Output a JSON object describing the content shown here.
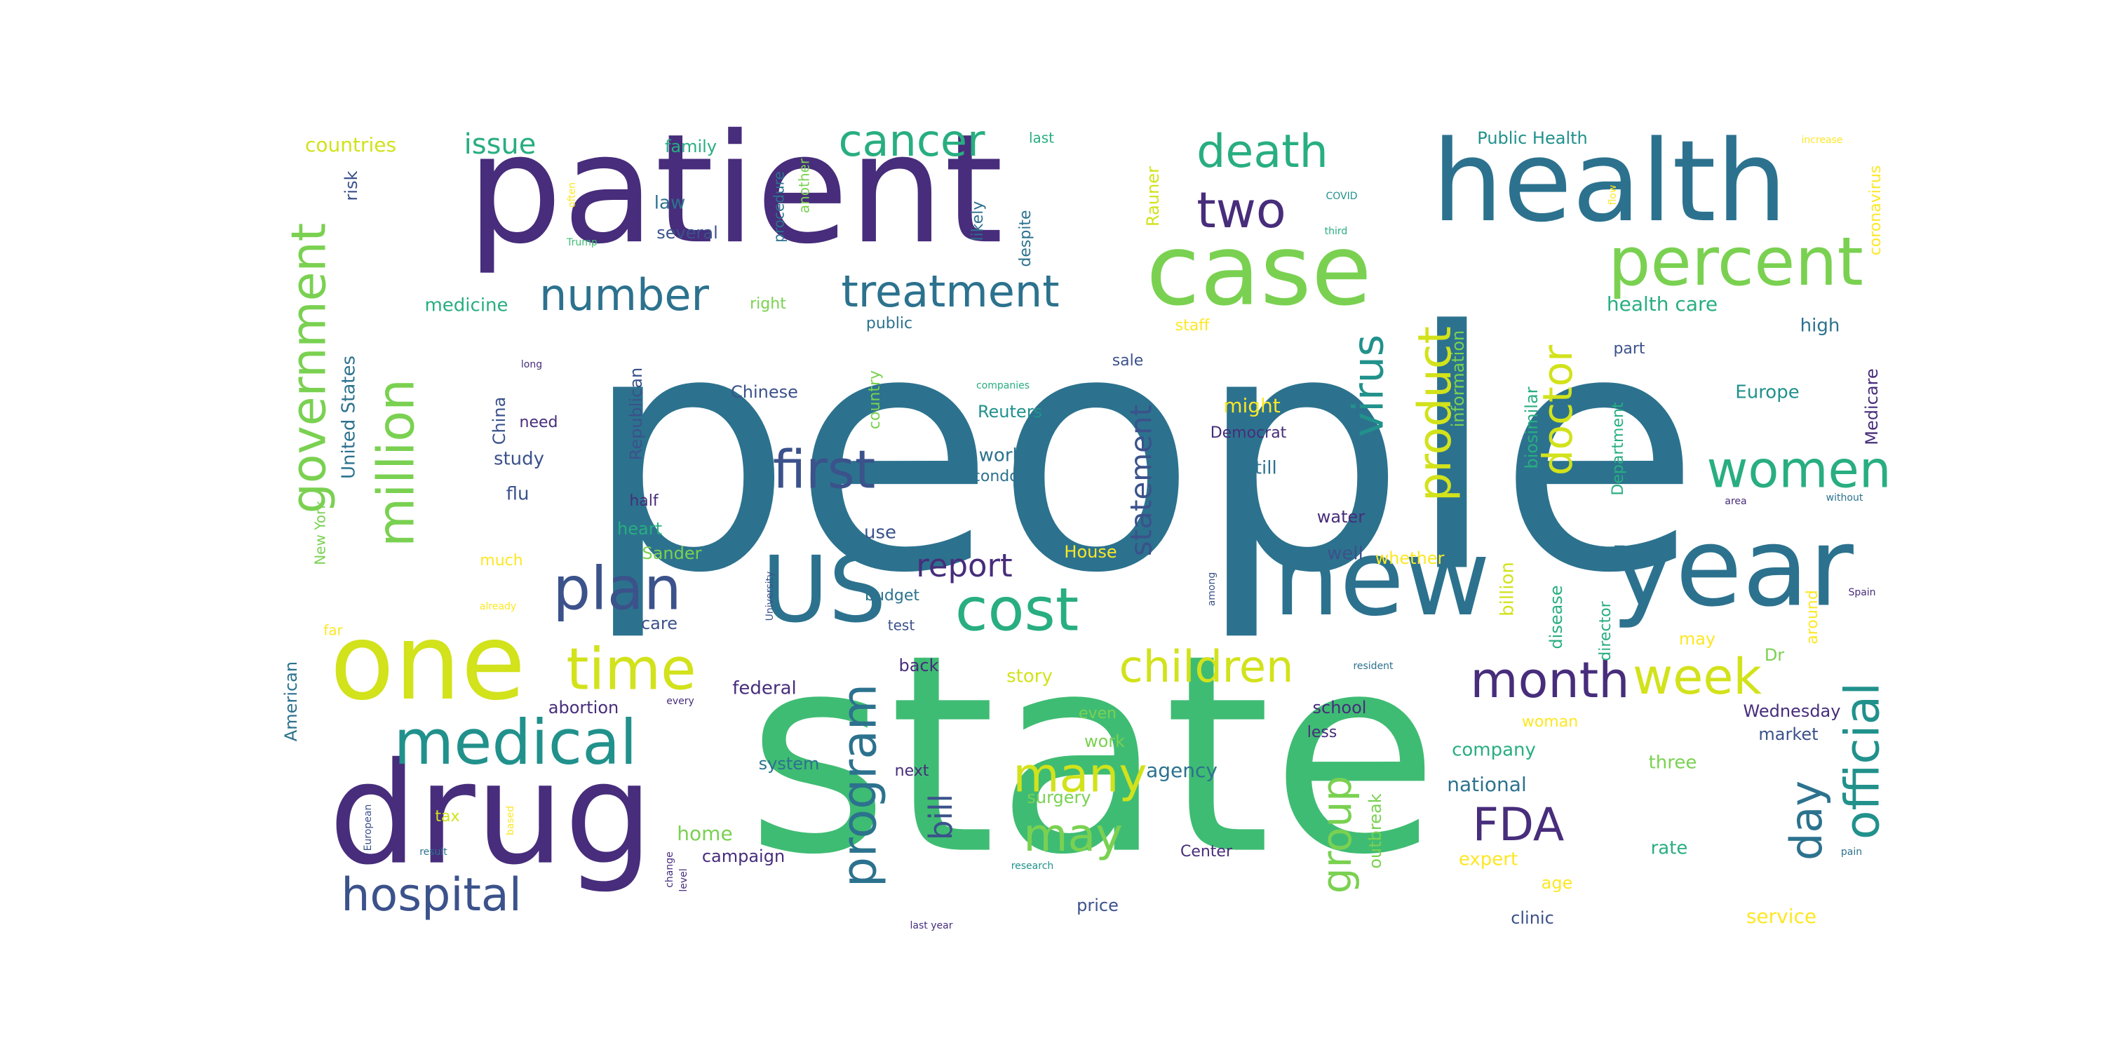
{
  "palette": {
    "indigo": "#472d7b",
    "blue": "#3b528b",
    "teal": "#2c728e",
    "cyan": "#21918c",
    "green": "#28ae80",
    "emerald": "#3fbc73",
    "lime": "#7ad151",
    "yellow": "#d2e21b",
    "gold": "#fde725"
  },
  "words": [
    {
      "text": "people",
      "color": "teal"
    },
    {
      "text": "state",
      "color": "emerald"
    },
    {
      "text": "patient",
      "color": "indigo"
    },
    {
      "text": "health",
      "color": "teal"
    },
    {
      "text": "case",
      "color": "lime"
    },
    {
      "text": "drug",
      "color": "indigo"
    },
    {
      "text": "year",
      "color": "teal"
    },
    {
      "text": "new",
      "color": "teal"
    },
    {
      "text": "one",
      "color": "yellow"
    },
    {
      "text": "US",
      "color": "teal"
    },
    {
      "text": "percent",
      "color": "lime"
    },
    {
      "text": "government",
      "color": "lime"
    },
    {
      "text": "million",
      "color": "lime"
    },
    {
      "text": "medical",
      "color": "cyan"
    },
    {
      "text": "cancer",
      "color": "green"
    },
    {
      "text": "death",
      "color": "green"
    },
    {
      "text": "two",
      "color": "indigo"
    },
    {
      "text": "treatment",
      "color": "teal"
    },
    {
      "text": "number",
      "color": "teal"
    },
    {
      "text": "plan",
      "color": "blue"
    },
    {
      "text": "cost",
      "color": "green"
    },
    {
      "text": "time",
      "color": "yellow"
    },
    {
      "text": "hospital",
      "color": "blue"
    },
    {
      "text": "first",
      "color": "blue"
    },
    {
      "text": "program",
      "color": "teal"
    },
    {
      "text": "children",
      "color": "yellow"
    },
    {
      "text": "virus",
      "color": "cyan"
    },
    {
      "text": "product",
      "color": "yellow"
    },
    {
      "text": "doctor",
      "color": "yellow"
    },
    {
      "text": "women",
      "color": "green"
    },
    {
      "text": "week",
      "color": "yellow"
    },
    {
      "text": "month",
      "color": "indigo"
    },
    {
      "text": "many",
      "color": "yellow"
    },
    {
      "text": "may",
      "color": "lime"
    },
    {
      "text": "official",
      "color": "cyan"
    },
    {
      "text": "day",
      "color": "teal"
    },
    {
      "text": "FDA",
      "color": "indigo"
    },
    {
      "text": "group",
      "color": "lime"
    },
    {
      "text": "statement",
      "color": "blue"
    },
    {
      "text": "report",
      "color": "indigo"
    },
    {
      "text": "bill",
      "color": "blue"
    },
    {
      "text": "issue",
      "color": "green"
    },
    {
      "text": "countries",
      "color": "yellow"
    },
    {
      "text": "family",
      "color": "green"
    },
    {
      "text": "last",
      "color": "green"
    },
    {
      "text": "Public Health",
      "color": "cyan"
    },
    {
      "text": "increase",
      "color": "gold"
    },
    {
      "text": "coronavirus",
      "color": "gold"
    },
    {
      "text": "risk",
      "color": "blue"
    },
    {
      "text": "law",
      "color": "teal"
    },
    {
      "text": "several",
      "color": "blue"
    },
    {
      "text": "procedure",
      "color": "teal"
    },
    {
      "text": "another",
      "color": "lime"
    },
    {
      "text": "likely",
      "color": "teal"
    },
    {
      "text": "despite",
      "color": "teal"
    },
    {
      "text": "Rauner",
      "color": "yellow"
    },
    {
      "text": "COVID",
      "color": "cyan"
    },
    {
      "text": "third",
      "color": "green"
    },
    {
      "text": "flow",
      "color": "gold"
    },
    {
      "text": "often",
      "color": "gold"
    },
    {
      "text": "Trump",
      "color": "emerald"
    },
    {
      "text": "medicine",
      "color": "green"
    },
    {
      "text": "right",
      "color": "lime"
    },
    {
      "text": "public",
      "color": "teal"
    },
    {
      "text": "staff",
      "color": "gold"
    },
    {
      "text": "health care",
      "color": "green"
    },
    {
      "text": "high",
      "color": "teal"
    },
    {
      "text": "United States",
      "color": "teal"
    },
    {
      "text": "Republican",
      "color": "blue"
    },
    {
      "text": "China",
      "color": "blue"
    },
    {
      "text": "long",
      "color": "indigo"
    },
    {
      "text": "need",
      "color": "indigo"
    },
    {
      "text": "study",
      "color": "blue"
    },
    {
      "text": "flu",
      "color": "blue"
    },
    {
      "text": "Chinese",
      "color": "blue"
    },
    {
      "text": "country",
      "color": "lime"
    },
    {
      "text": "companies",
      "color": "green"
    },
    {
      "text": "Reuters",
      "color": "cyan"
    },
    {
      "text": "worker",
      "color": "teal"
    },
    {
      "text": "condom",
      "color": "teal"
    },
    {
      "text": "sale",
      "color": "blue"
    },
    {
      "text": "might",
      "color": "gold"
    },
    {
      "text": "Democrat",
      "color": "indigo"
    },
    {
      "text": "still",
      "color": "teal"
    },
    {
      "text": "information",
      "color": "lime"
    },
    {
      "text": "biosimilar",
      "color": "green"
    },
    {
      "text": "Department",
      "color": "green"
    },
    {
      "text": "part",
      "color": "blue"
    },
    {
      "text": "Europe",
      "color": "cyan"
    },
    {
      "text": "Medicare",
      "color": "indigo"
    },
    {
      "text": "New York",
      "color": "lime"
    },
    {
      "text": "half",
      "color": "indigo"
    },
    {
      "text": "heart",
      "color": "green"
    },
    {
      "text": "use",
      "color": "blue"
    },
    {
      "text": "Sander",
      "color": "lime"
    },
    {
      "text": "much",
      "color": "gold"
    },
    {
      "text": "already",
      "color": "gold"
    },
    {
      "text": "care",
      "color": "blue"
    },
    {
      "text": "far",
      "color": "gold"
    },
    {
      "text": "budget",
      "color": "teal"
    },
    {
      "text": "test",
      "color": "blue"
    },
    {
      "text": "University",
      "color": "blue"
    },
    {
      "text": "House",
      "color": "gold"
    },
    {
      "text": "water",
      "color": "indigo"
    },
    {
      "text": "well",
      "color": "blue"
    },
    {
      "text": "whether",
      "color": "gold"
    },
    {
      "text": "billion",
      "color": "yellow"
    },
    {
      "text": "among",
      "color": "blue"
    },
    {
      "text": "area",
      "color": "indigo"
    },
    {
      "text": "without",
      "color": "teal"
    },
    {
      "text": "Spain",
      "color": "indigo"
    },
    {
      "text": "around",
      "color": "gold"
    },
    {
      "text": "director",
      "color": "green"
    },
    {
      "text": "disease",
      "color": "green"
    },
    {
      "text": "American",
      "color": "teal"
    },
    {
      "text": "back",
      "color": "indigo"
    },
    {
      "text": "story",
      "color": "yellow"
    },
    {
      "text": "resident",
      "color": "teal"
    },
    {
      "text": "may",
      "color": "gold"
    },
    {
      "text": "Dr",
      "color": "lime"
    },
    {
      "text": "abortion",
      "color": "indigo"
    },
    {
      "text": "every",
      "color": "indigo"
    },
    {
      "text": "federal",
      "color": "indigo"
    },
    {
      "text": "even",
      "color": "lime"
    },
    {
      "text": "school",
      "color": "indigo"
    },
    {
      "text": "woman",
      "color": "gold"
    },
    {
      "text": "Wednesday",
      "color": "indigo"
    },
    {
      "text": "work",
      "color": "lime"
    },
    {
      "text": "less",
      "color": "indigo"
    },
    {
      "text": "company",
      "color": "green"
    },
    {
      "text": "market",
      "color": "blue"
    },
    {
      "text": "system",
      "color": "teal"
    },
    {
      "text": "next",
      "color": "indigo"
    },
    {
      "text": "agency",
      "color": "teal"
    },
    {
      "text": "surgery",
      "color": "lime"
    },
    {
      "text": "outbreak",
      "color": "lime"
    },
    {
      "text": "national",
      "color": "teal"
    },
    {
      "text": "three",
      "color": "lime"
    },
    {
      "text": "European",
      "color": "blue"
    },
    {
      "text": "tax",
      "color": "yellow"
    },
    {
      "text": "based",
      "color": "gold"
    },
    {
      "text": "home",
      "color": "lime"
    },
    {
      "text": "result",
      "color": "teal"
    },
    {
      "text": "change",
      "color": "indigo"
    },
    {
      "text": "level",
      "color": "indigo"
    },
    {
      "text": "campaign",
      "color": "indigo"
    },
    {
      "text": "research",
      "color": "cyan"
    },
    {
      "text": "Center",
      "color": "indigo"
    },
    {
      "text": "expert",
      "color": "gold"
    },
    {
      "text": "age",
      "color": "gold"
    },
    {
      "text": "rate",
      "color": "green"
    },
    {
      "text": "pain",
      "color": "teal"
    },
    {
      "text": "last year",
      "color": "indigo"
    },
    {
      "text": "price",
      "color": "blue"
    },
    {
      "text": "clinic",
      "color": "blue"
    },
    {
      "text": "service",
      "color": "gold"
    }
  ]
}
